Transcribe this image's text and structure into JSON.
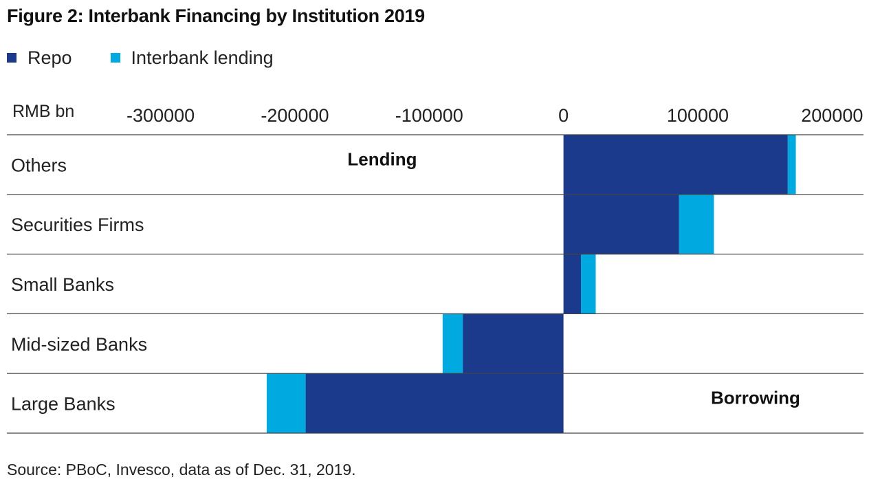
{
  "title": "Figure 2: Interbank Financing by Institution 2019",
  "source": "Source: PBoC, Invesco, data as of Dec. 31, 2019.",
  "colors": {
    "repo": "#1b3a8c",
    "interbank": "#00a9e0",
    "grid": "#444444"
  },
  "chart_data": {
    "type": "bar",
    "orientation": "horizontal",
    "stacked": true,
    "unit_label": "RMB bn",
    "xlim": [
      -330000,
      228000
    ],
    "xticks": [
      -300000,
      -200000,
      -100000,
      0,
      100000,
      200000
    ],
    "xtick_labels": [
      "-300000",
      "-200000",
      "-100000",
      "0",
      "100000",
      "200000"
    ],
    "categories": [
      "Others",
      "Securities Firms",
      "Small Banks",
      "Mid-sized Banks",
      "Large Banks"
    ],
    "series": [
      {
        "name": "Repo",
        "values": [
          167000,
          86000,
          13000,
          -75000,
          -192000
        ]
      },
      {
        "name": "Interbank lending",
        "values": [
          6000,
          26000,
          11000,
          -15000,
          -29000
        ]
      }
    ],
    "annotations": [
      {
        "text": "Lending",
        "x": -135000,
        "category": "Others"
      },
      {
        "text": "Borrowing",
        "x": 143000,
        "category": "Large Banks"
      }
    ],
    "legend_position": "top-left",
    "grid": "horizontal separators"
  }
}
